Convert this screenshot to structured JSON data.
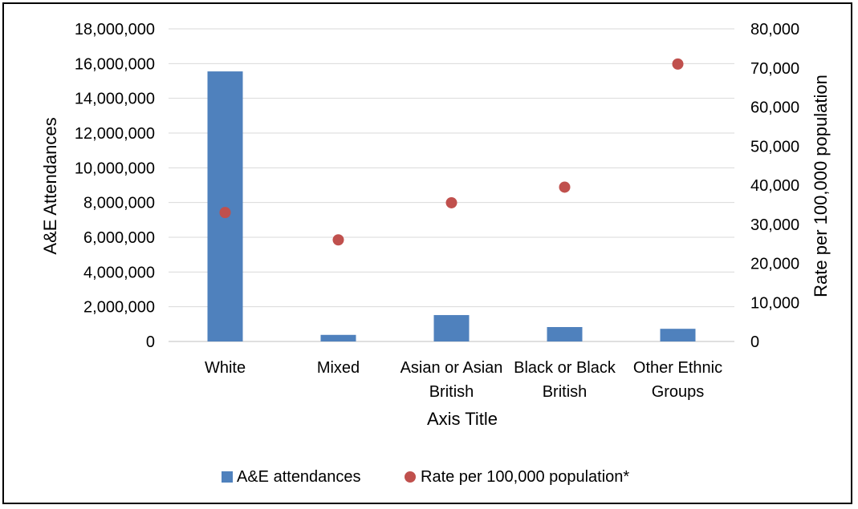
{
  "chart_data": {
    "type": "bar",
    "categories": [
      [
        "White"
      ],
      [
        "Mixed"
      ],
      [
        "Asian or Asian",
        "British"
      ],
      [
        "Black or Black",
        "British"
      ],
      [
        "Other Ethnic",
        "Groups"
      ]
    ],
    "xlabel": "Axis Title",
    "ylabel": "A&E Attendances",
    "y2label": "Rate per 100,000 population",
    "ylim": [
      0,
      18000000
    ],
    "y2lim": [
      0,
      80000
    ],
    "yticks": [
      "0",
      "2,000,000",
      "4,000,000",
      "6,000,000",
      "8,000,000",
      "10,000,000",
      "12,000,000",
      "14,000,000",
      "16,000,000",
      "18,000,000"
    ],
    "y2ticks": [
      "0",
      "10,000",
      "20,000",
      "30,000",
      "40,000",
      "50,000",
      "60,000",
      "70,000",
      "80,000"
    ],
    "grid": true,
    "legend_position": "bottom",
    "series": [
      {
        "name": "A&E attendances",
        "type": "bar",
        "axis": "left",
        "color": "#4F81BD",
        "values": [
          15550000,
          380000,
          1520000,
          830000,
          730000
        ]
      },
      {
        "name": "Rate per 100,000 population*",
        "type": "scatter",
        "axis": "right",
        "color": "#C0504D",
        "values": [
          33000,
          26000,
          35500,
          39500,
          71000
        ]
      }
    ]
  }
}
